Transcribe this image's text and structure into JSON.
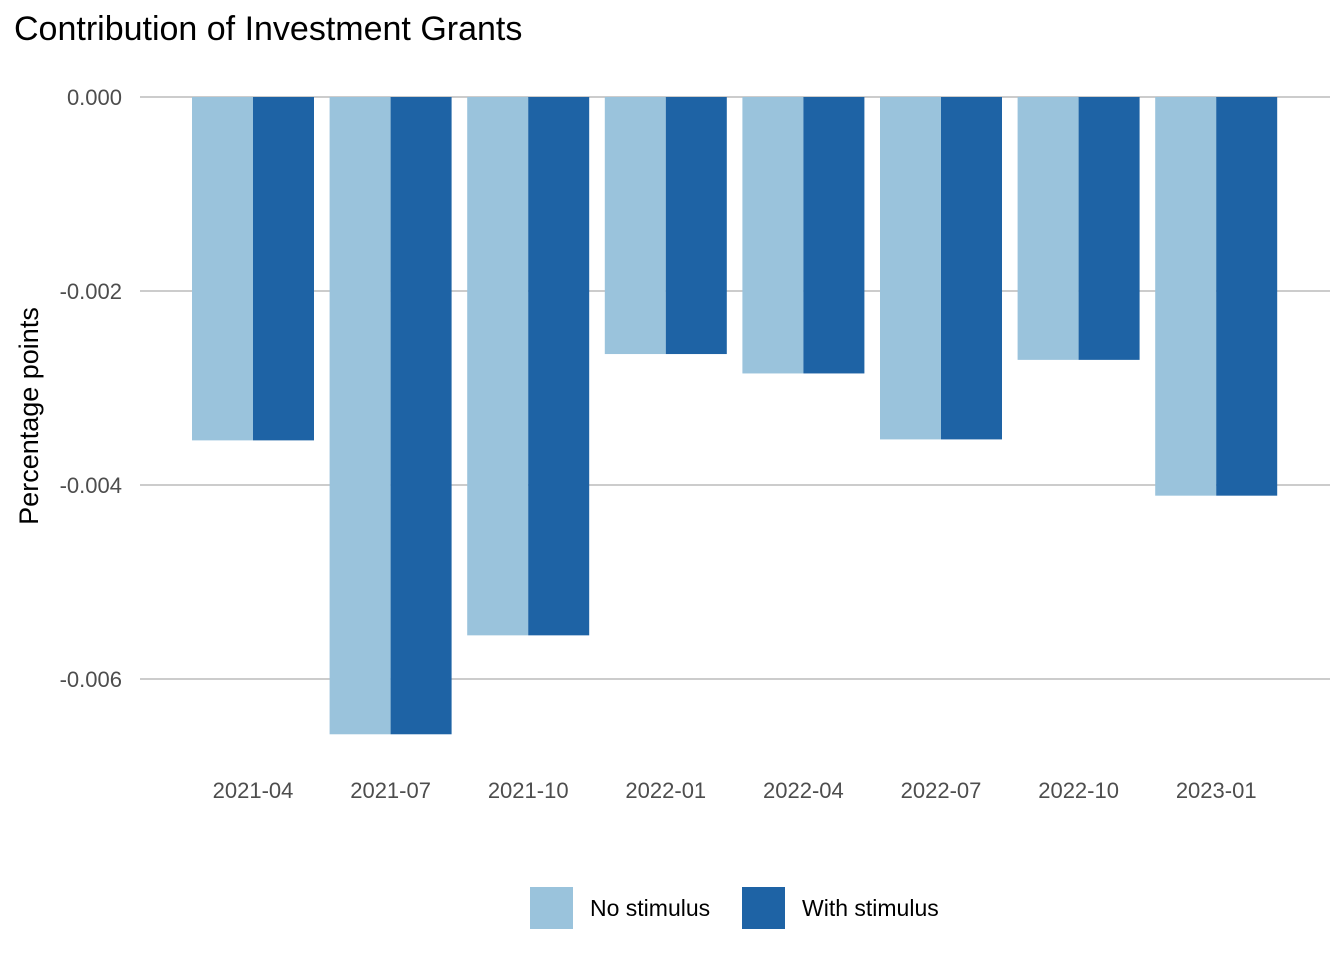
{
  "chart_data": {
    "type": "bar",
    "title": "Contribution of Investment Grants",
    "xlabel": "",
    "ylabel": "Percentage points",
    "categories": [
      "2021-04",
      "2021-07",
      "2021-10",
      "2022-01",
      "2022-04",
      "2022-07",
      "2022-10",
      "2023-01"
    ],
    "series": [
      {
        "name": "No stimulus",
        "color": "#9ac3dc",
        "values": [
          -0.00354,
          -0.00657,
          -0.00555,
          -0.00265,
          -0.00285,
          -0.00353,
          -0.00271,
          -0.00411
        ]
      },
      {
        "name": "With stimulus",
        "color": "#1e63a5",
        "values": [
          -0.00354,
          -0.00657,
          -0.00555,
          -0.00265,
          -0.00285,
          -0.00353,
          -0.00271,
          -0.00411
        ]
      }
    ],
    "yticks": [
      "0.000",
      "-0.002",
      "-0.004",
      "-0.006"
    ],
    "ytick_values": [
      0,
      -0.002,
      -0.004,
      -0.006
    ],
    "ylim": [
      -0.00673,
      0
    ],
    "grid": true,
    "legend_position": "bottom"
  }
}
